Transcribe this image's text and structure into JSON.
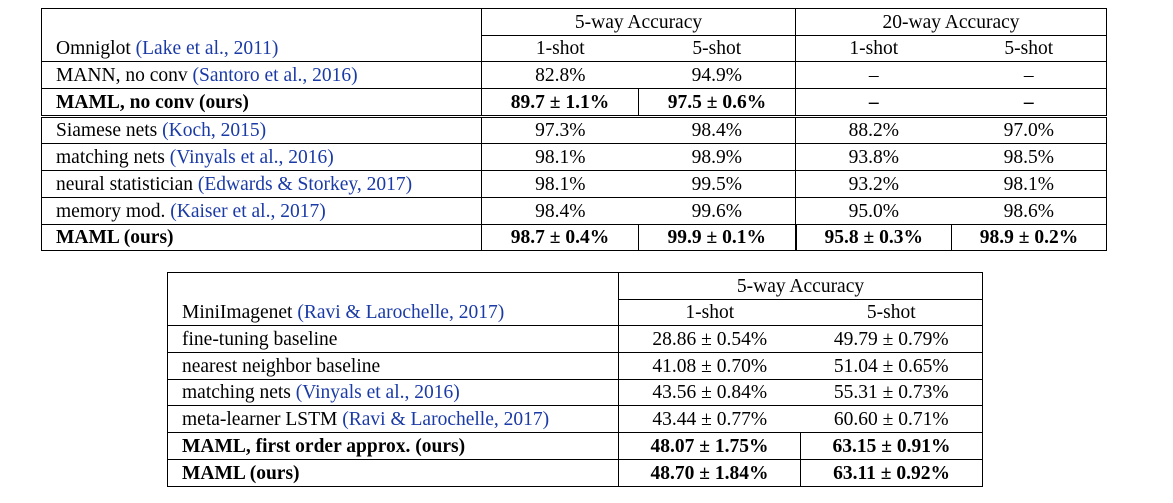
{
  "omniglot": {
    "dataset": "Omniglot",
    "dataset_cite": "(Lake et al., 2011)",
    "groups": [
      "5-way Accuracy",
      "20-way Accuracy"
    ],
    "columns": [
      "1-shot",
      "5-shot",
      "1-shot",
      "5-shot"
    ],
    "rows": [
      {
        "method": "MANN, no conv",
        "cite": "(Santoro et al., 2016)",
        "bold": false,
        "values": [
          "82.8%",
          "94.9%",
          "–",
          "–"
        ]
      },
      {
        "method": "MAML, no conv (ours)",
        "cite": "",
        "bold": true,
        "values": [
          "89.7 ± 1.1%",
          "97.5 ± 0.6%",
          "–",
          "–"
        ]
      },
      {
        "method": "Siamese nets",
        "cite": "(Koch, 2015)",
        "bold": false,
        "values": [
          "97.3%",
          "98.4%",
          "88.2%",
          "97.0%"
        ]
      },
      {
        "method": "matching nets",
        "cite": "(Vinyals et al., 2016)",
        "bold": false,
        "values": [
          "98.1%",
          "98.9%",
          "93.8%",
          "98.5%"
        ]
      },
      {
        "method": "neural statistician",
        "cite": "(Edwards & Storkey, 2017)",
        "bold": false,
        "values": [
          "98.1%",
          "99.5%",
          "93.2%",
          "98.1%"
        ]
      },
      {
        "method": "memory mod.",
        "cite": "(Kaiser et al., 2017)",
        "bold": false,
        "values": [
          "98.4%",
          "99.6%",
          "95.0%",
          "98.6%"
        ]
      },
      {
        "method": "MAML (ours)",
        "cite": "",
        "bold": true,
        "values": [
          "98.7 ± 0.4%",
          "99.9 ± 0.1%",
          "95.8 ± 0.3%",
          "98.9 ± 0.2%"
        ]
      }
    ]
  },
  "miniimagenet": {
    "dataset": "MiniImagenet",
    "dataset_cite": "(Ravi & Larochelle, 2017)",
    "groups": [
      "5-way Accuracy"
    ],
    "columns": [
      "1-shot",
      "5-shot"
    ],
    "rows": [
      {
        "method": "fine-tuning baseline",
        "cite": "",
        "bold": false,
        "values": [
          "28.86 ± 0.54%",
          "49.79 ± 0.79%"
        ]
      },
      {
        "method": "nearest neighbor baseline",
        "cite": "",
        "bold": false,
        "values": [
          "41.08 ± 0.70%",
          "51.04 ± 0.65%"
        ]
      },
      {
        "method": "matching nets",
        "cite": "(Vinyals et al., 2016)",
        "bold": false,
        "values": [
          "43.56 ± 0.84%",
          "55.31 ± 0.73%"
        ]
      },
      {
        "method": "meta-learner LSTM",
        "cite": "(Ravi & Larochelle, 2017)",
        "bold": false,
        "values": [
          "43.44 ± 0.77%",
          "60.60 ± 0.71%"
        ]
      },
      {
        "method": "MAML, first order approx. (ours)",
        "cite": "",
        "bold": true,
        "values": [
          "48.07 ± 1.75%",
          "63.15 ± 0.91%"
        ]
      },
      {
        "method": "MAML (ours)",
        "cite": "",
        "bold": true,
        "values": [
          "48.70 ± 1.84%",
          "63.11 ± 0.92%"
        ]
      }
    ]
  }
}
